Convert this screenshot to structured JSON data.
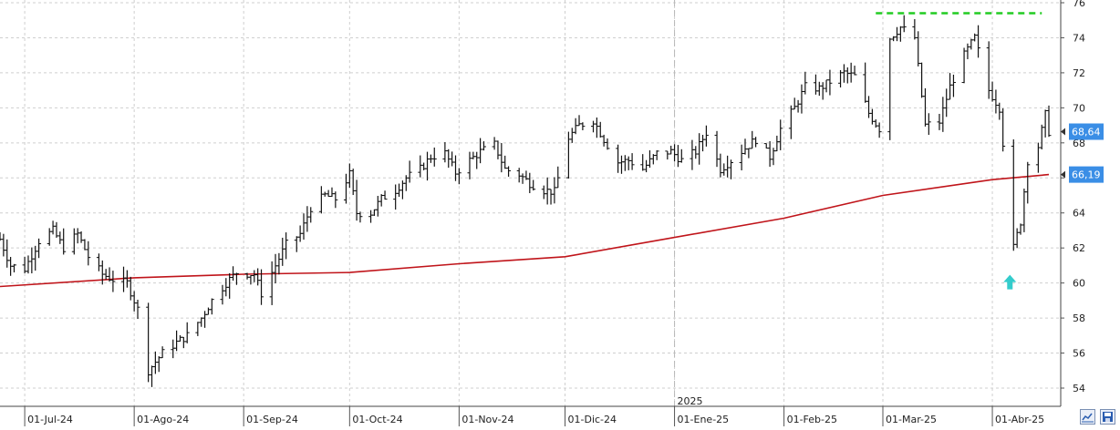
{
  "chart_data": {
    "type": "ohlc",
    "title": "",
    "xlabel": "",
    "ylabel": "",
    "ylim": [
      53,
      76
    ],
    "y_ticks": [
      54,
      56,
      58,
      60,
      62,
      64,
      66,
      68,
      70,
      72,
      74,
      76
    ],
    "grid": true,
    "date_range": [
      "2024-06-24",
      "2025-04-17"
    ],
    "x_ticks": [
      {
        "date": "2024-07-01",
        "label": "01-Jul-24"
      },
      {
        "date": "2024-08-01",
        "label": "01-Ago-24"
      },
      {
        "date": "2024-09-01",
        "label": "01-Sep-24"
      },
      {
        "date": "2024-10-01",
        "label": "01-Oct-24"
      },
      {
        "date": "2024-11-01",
        "label": "01-Nov-24"
      },
      {
        "date": "2024-12-01",
        "label": "01-Dic-24"
      },
      {
        "date": "2025-01-01",
        "label": "01-Ene-25"
      },
      {
        "date": "2025-02-01",
        "label": "01-Feb-25"
      },
      {
        "date": "2025-03-01",
        "label": "01-Mar-25"
      },
      {
        "date": "2025-04-01",
        "label": "01-Abr-25"
      }
    ],
    "year_marker": {
      "date": "2025-01-01",
      "label": "2025"
    },
    "price_series": [
      {
        "date": "2024-06-24",
        "value": 62.5
      },
      {
        "date": "2024-06-27",
        "value": 61.0
      },
      {
        "date": "2024-07-01",
        "value": 60.8
      },
      {
        "date": "2024-07-05",
        "value": 62.4
      },
      {
        "date": "2024-07-09",
        "value": 63.0
      },
      {
        "date": "2024-07-12",
        "value": 62.0
      },
      {
        "date": "2024-07-16",
        "value": 62.8
      },
      {
        "date": "2024-07-19",
        "value": 61.5
      },
      {
        "date": "2024-07-23",
        "value": 60.5
      },
      {
        "date": "2024-07-26",
        "value": 60.2
      },
      {
        "date": "2024-07-30",
        "value": 60.0
      },
      {
        "date": "2024-08-02",
        "value": 58.5
      },
      {
        "date": "2024-08-05",
        "value": 55.0
      },
      {
        "date": "2024-08-09",
        "value": 56.0
      },
      {
        "date": "2024-08-13",
        "value": 56.6
      },
      {
        "date": "2024-08-16",
        "value": 57.0
      },
      {
        "date": "2024-08-20",
        "value": 58.0
      },
      {
        "date": "2024-08-23",
        "value": 59.0
      },
      {
        "date": "2024-08-27",
        "value": 60.0
      },
      {
        "date": "2024-08-30",
        "value": 60.6
      },
      {
        "date": "2024-09-04",
        "value": 60.5
      },
      {
        "date": "2024-09-06",
        "value": 59.4
      },
      {
        "date": "2024-09-10",
        "value": 61.0
      },
      {
        "date": "2024-09-13",
        "value": 62.2
      },
      {
        "date": "2024-09-17",
        "value": 62.8
      },
      {
        "date": "2024-09-20",
        "value": 64.3
      },
      {
        "date": "2024-09-24",
        "value": 65.0
      },
      {
        "date": "2024-09-27",
        "value": 64.8
      },
      {
        "date": "2024-10-01",
        "value": 66.2
      },
      {
        "date": "2024-10-03",
        "value": 64.0
      },
      {
        "date": "2024-10-07",
        "value": 64.0
      },
      {
        "date": "2024-10-10",
        "value": 64.8
      },
      {
        "date": "2024-10-14",
        "value": 65.3
      },
      {
        "date": "2024-10-17",
        "value": 66.0
      },
      {
        "date": "2024-10-21",
        "value": 66.5
      },
      {
        "date": "2024-10-24",
        "value": 67.2
      },
      {
        "date": "2024-10-28",
        "value": 67.4
      },
      {
        "date": "2024-10-31",
        "value": 66.3
      },
      {
        "date": "2024-11-04",
        "value": 67.0
      },
      {
        "date": "2024-11-07",
        "value": 67.5
      },
      {
        "date": "2024-11-11",
        "value": 67.9
      },
      {
        "date": "2024-11-14",
        "value": 66.5
      },
      {
        "date": "2024-11-18",
        "value": 66.2
      },
      {
        "date": "2024-11-21",
        "value": 65.7
      },
      {
        "date": "2024-11-25",
        "value": 65.3
      },
      {
        "date": "2024-11-28",
        "value": 65.2
      },
      {
        "date": "2024-12-02",
        "value": 68.3
      },
      {
        "date": "2024-12-05",
        "value": 69.0
      },
      {
        "date": "2024-12-09",
        "value": 69.3
      },
      {
        "date": "2024-12-12",
        "value": 68.2
      },
      {
        "date": "2024-12-16",
        "value": 66.9
      },
      {
        "date": "2024-12-19",
        "value": 67.0
      },
      {
        "date": "2024-12-23",
        "value": 66.5
      },
      {
        "date": "2024-12-27",
        "value": 67.4
      },
      {
        "date": "2024-12-31",
        "value": 67.5
      },
      {
        "date": "2025-01-03",
        "value": 67.0
      },
      {
        "date": "2025-01-07",
        "value": 67.5
      },
      {
        "date": "2025-01-10",
        "value": 68.6
      },
      {
        "date": "2025-01-14",
        "value": 66.5
      },
      {
        "date": "2025-01-17",
        "value": 67.0
      },
      {
        "date": "2025-01-21",
        "value": 67.7
      },
      {
        "date": "2025-01-24",
        "value": 68.2
      },
      {
        "date": "2025-01-28",
        "value": 67.2
      },
      {
        "date": "2025-01-31",
        "value": 68.8
      },
      {
        "date": "2025-02-04",
        "value": 70.0
      },
      {
        "date": "2025-02-07",
        "value": 71.2
      },
      {
        "date": "2025-02-11",
        "value": 71.1
      },
      {
        "date": "2025-02-14",
        "value": 71.5
      },
      {
        "date": "2025-02-18",
        "value": 72.0
      },
      {
        "date": "2025-02-21",
        "value": 71.8
      },
      {
        "date": "2025-02-25",
        "value": 69.7
      },
      {
        "date": "2025-02-28",
        "value": 68.8
      },
      {
        "date": "2025-03-03",
        "value": 74.0
      },
      {
        "date": "2025-03-06",
        "value": 74.6
      },
      {
        "date": "2025-03-10",
        "value": 74.0
      },
      {
        "date": "2025-03-13",
        "value": 69.0
      },
      {
        "date": "2025-03-17",
        "value": 69.2
      },
      {
        "date": "2025-03-20",
        "value": 71.2
      },
      {
        "date": "2025-03-24",
        "value": 73.0
      },
      {
        "date": "2025-03-27",
        "value": 74.0
      },
      {
        "date": "2025-03-31",
        "value": 71.0
      },
      {
        "date": "2025-04-03",
        "value": 70.0
      },
      {
        "date": "2025-04-07",
        "value": 62.0
      },
      {
        "date": "2025-04-09",
        "value": 63.5
      },
      {
        "date": "2025-04-11",
        "value": 67.0
      },
      {
        "date": "2025-04-14",
        "value": 67.8
      },
      {
        "date": "2025-04-16",
        "value": 69.6
      },
      {
        "date": "2025-04-17",
        "value": 68.64
      }
    ],
    "moving_average": {
      "color": "#c0141a",
      "points": [
        {
          "date": "2024-06-24",
          "value": 59.8
        },
        {
          "date": "2024-08-01",
          "value": 60.3
        },
        {
          "date": "2024-09-01",
          "value": 60.5
        },
        {
          "date": "2024-10-01",
          "value": 60.6
        },
        {
          "date": "2024-11-01",
          "value": 61.1
        },
        {
          "date": "2024-12-01",
          "value": 61.5
        },
        {
          "date": "2025-01-01",
          "value": 62.6
        },
        {
          "date": "2025-02-01",
          "value": 63.7
        },
        {
          "date": "2025-03-01",
          "value": 65.0
        },
        {
          "date": "2025-04-01",
          "value": 65.9
        },
        {
          "date": "2025-04-17",
          "value": 66.19
        }
      ]
    },
    "resistance_line": {
      "value": 75.4,
      "color": "#22cc22",
      "from": "2025-02-27",
      "to": "2025-04-15"
    },
    "arrow_marker": {
      "date": "2025-04-07",
      "value": 60.0,
      "color": "#33cccc"
    },
    "price_labels": [
      {
        "text": "68,64",
        "value": 68.64,
        "color": "#3a8ee6"
      },
      {
        "text": "66,19",
        "value": 66.19,
        "color": "#3a8ee6"
      }
    ]
  },
  "toolbar": {
    "chart_icon": "chart-icon",
    "save_icon": "save-icon"
  }
}
